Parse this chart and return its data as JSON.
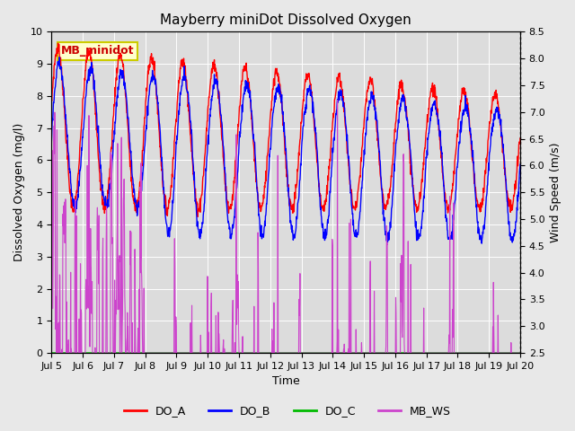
{
  "title": "Mayberry miniDot Dissolved Oxygen",
  "xlabel": "Time",
  "ylabel_left": "Dissolved Oxygen (mg/l)",
  "ylabel_right": "Wind Speed (m/s)",
  "ylim_left": [
    0.0,
    10.0
  ],
  "ylim_right": [
    2.5,
    8.5
  ],
  "x_tick_labels": [
    "Jul 5",
    "Jul 6",
    "Jul 7",
    "Jul 8",
    "Jul 9",
    "Jul 10",
    "Jul 11",
    "Jul 12",
    "Jul 13",
    "Jul 14",
    "Jul 15",
    "Jul 16",
    "Jul 17",
    "Jul 18",
    "Jul 19",
    "Jul 20"
  ],
  "annotation_text": "MB_minidot",
  "bg_color": "#e8e8e8",
  "plot_bg_color": "#dcdcdc",
  "color_DO_A": "#ff0000",
  "color_DO_B": "#0000ff",
  "color_DO_C": "#00bb00",
  "color_MB_WS": "#cc44cc",
  "lw_DO_A": 1.0,
  "lw_DO_B": 1.0,
  "lw_DO_C": 1.2,
  "lw_MB_WS": 0.8,
  "title_fontsize": 11,
  "axis_label_fontsize": 9,
  "tick_fontsize": 8,
  "legend_fontsize": 9
}
